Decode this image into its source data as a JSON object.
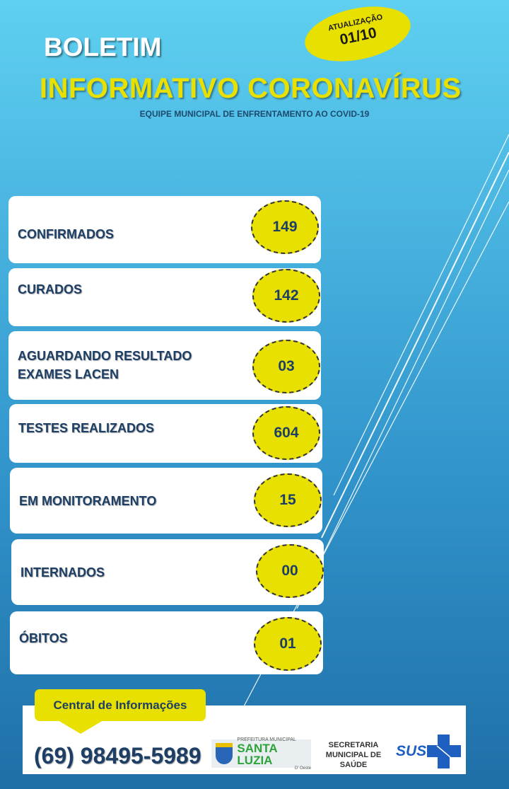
{
  "header": {
    "title": "BOLETIM",
    "subtitle": "INFORMATIVO  CORONAVÍRUS",
    "team": "EQUIPE MUNICIPAL DE ENFRENTAMENTO AO COVID-19"
  },
  "update_badge": {
    "label": "ATUALIZAÇÃO",
    "date": "01/10"
  },
  "stats": [
    {
      "label": "CONFIRMADOS",
      "value": "149"
    },
    {
      "label": "CURADOS",
      "value": "142"
    },
    {
      "label": "AGUARDANDO  RESULTADO EXAMES LACEN",
      "value": "03"
    },
    {
      "label": "TESTES REALIZADOS",
      "value": "604"
    },
    {
      "label": "EM MONITORAMENTO",
      "value": "15"
    },
    {
      "label": "INTERNADOS",
      "value": "00"
    },
    {
      "label": "ÓBITOS",
      "value": "01"
    }
  ],
  "footer": {
    "callout": "Central de Informações",
    "phone": "(69) 98495-5989",
    "prefeitura": {
      "line1": "PREFEITURA MUNICIPAL",
      "line2": "SANTA LUZIA",
      "line3": "D' Oeste"
    },
    "secretaria": "SECRETARIA MUNICIPAL DE SAÚDE",
    "sus": "SUS"
  },
  "colors": {
    "accent_yellow": "#e8e000",
    "text_dark_blue": "#1d3f66",
    "bg_top": "#5fd0f0",
    "bg_bottom": "#1f6fa7"
  }
}
